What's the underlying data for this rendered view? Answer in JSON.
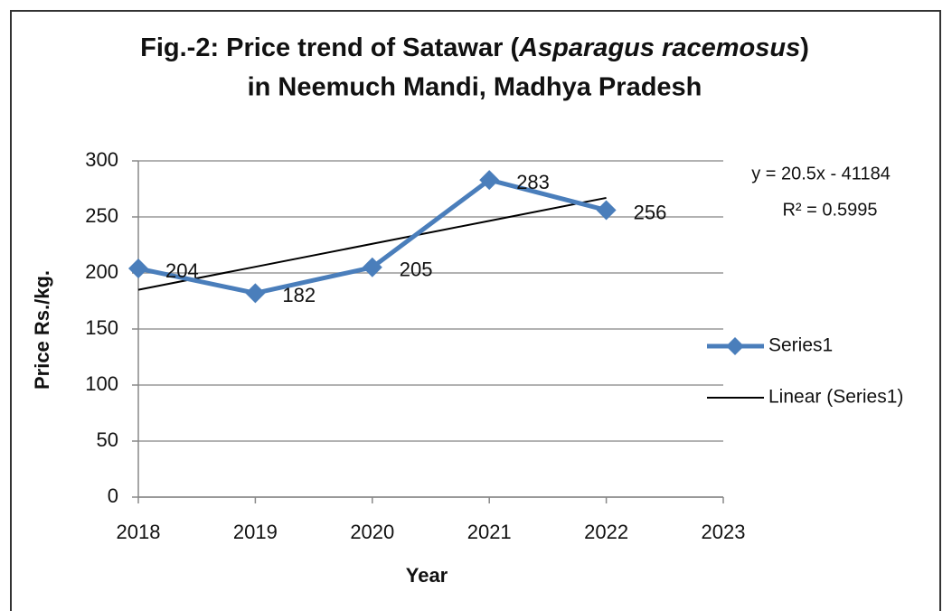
{
  "chart_data": {
    "type": "line",
    "title_parts": [
      "Fig.-2: Price trend of Satawar (",
      "Asparagus racemosus",
      ")",
      "in Neemuch Mandi, Madhya Pradesh"
    ],
    "x_label": "Year",
    "y_label": "Price Rs./kg.",
    "x": [
      2018,
      2019,
      2020,
      2021,
      2022
    ],
    "series": [
      {
        "name": "Series1",
        "color": "#4a7ebb",
        "values": [
          204,
          182,
          205,
          283,
          256
        ]
      },
      {
        "name": "Linear (Series1)",
        "color": "#000000",
        "values": [
          185,
          205.5,
          226,
          246.5,
          267
        ]
      }
    ],
    "annotations": [
      "y = 20.5x - 41184",
      "R² = 0.5995"
    ],
    "xlim": [
      2018,
      2023
    ],
    "xticks": [
      2018,
      2019,
      2020,
      2021,
      2022,
      2023
    ],
    "ylim": [
      0,
      300
    ],
    "yticks": [
      0,
      50,
      100,
      150,
      200,
      250,
      300
    ],
    "grid": true,
    "legend": "right"
  }
}
